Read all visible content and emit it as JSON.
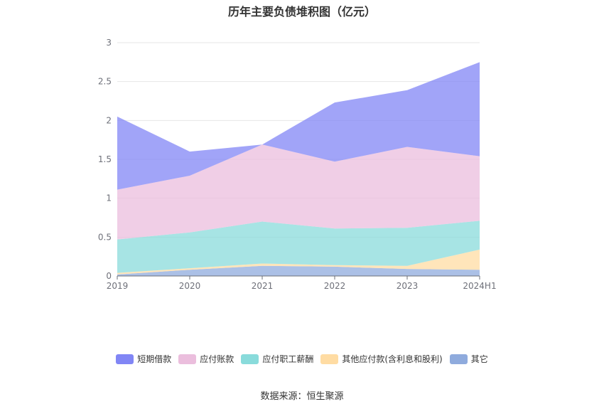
{
  "chart_data": {
    "type": "area",
    "stacked": true,
    "title": "历年主要负债堆积图（亿元）",
    "categories": [
      "2019",
      "2020",
      "2021",
      "2022",
      "2023",
      "2024H1"
    ],
    "y_ticks": [
      "0",
      "0.5",
      "1",
      "1.5",
      "2",
      "2.5",
      "3"
    ],
    "ylim": [
      0,
      3
    ],
    "grid": true,
    "legend_position": "bottom",
    "series": [
      {
        "name": "其它",
        "color": "#8fabdd",
        "values": [
          0.02,
          0.08,
          0.13,
          0.12,
          0.09,
          0.08
        ]
      },
      {
        "name": "其他应付款(含利息和股利)",
        "color": "#ffdca3",
        "values": [
          0.02,
          0.02,
          0.03,
          0.02,
          0.04,
          0.26
        ]
      },
      {
        "name": "应付职工薪酬",
        "color": "#89dbdb",
        "values": [
          0.43,
          0.46,
          0.54,
          0.47,
          0.49,
          0.37
        ]
      },
      {
        "name": "应付账款",
        "color": "#ebbedd",
        "values": [
          0.64,
          0.73,
          0.99,
          0.86,
          1.04,
          0.83
        ]
      },
      {
        "name": "短期借款",
        "color": "#8186f5",
        "values": [
          0.94,
          0.31,
          0.0,
          0.76,
          0.73,
          1.21
        ]
      }
    ]
  },
  "legend": [
    {
      "label": "短期借款",
      "color": "#8186f5"
    },
    {
      "label": "应付账款",
      "color": "#ebbedd"
    },
    {
      "label": "应付职工薪酬",
      "color": "#89dbdb"
    },
    {
      "label": "其他应付款(含利息和股利)",
      "color": "#ffdca3"
    },
    {
      "label": "其它",
      "color": "#8fabdd"
    }
  ],
  "source": "数据来源：恒生聚源"
}
